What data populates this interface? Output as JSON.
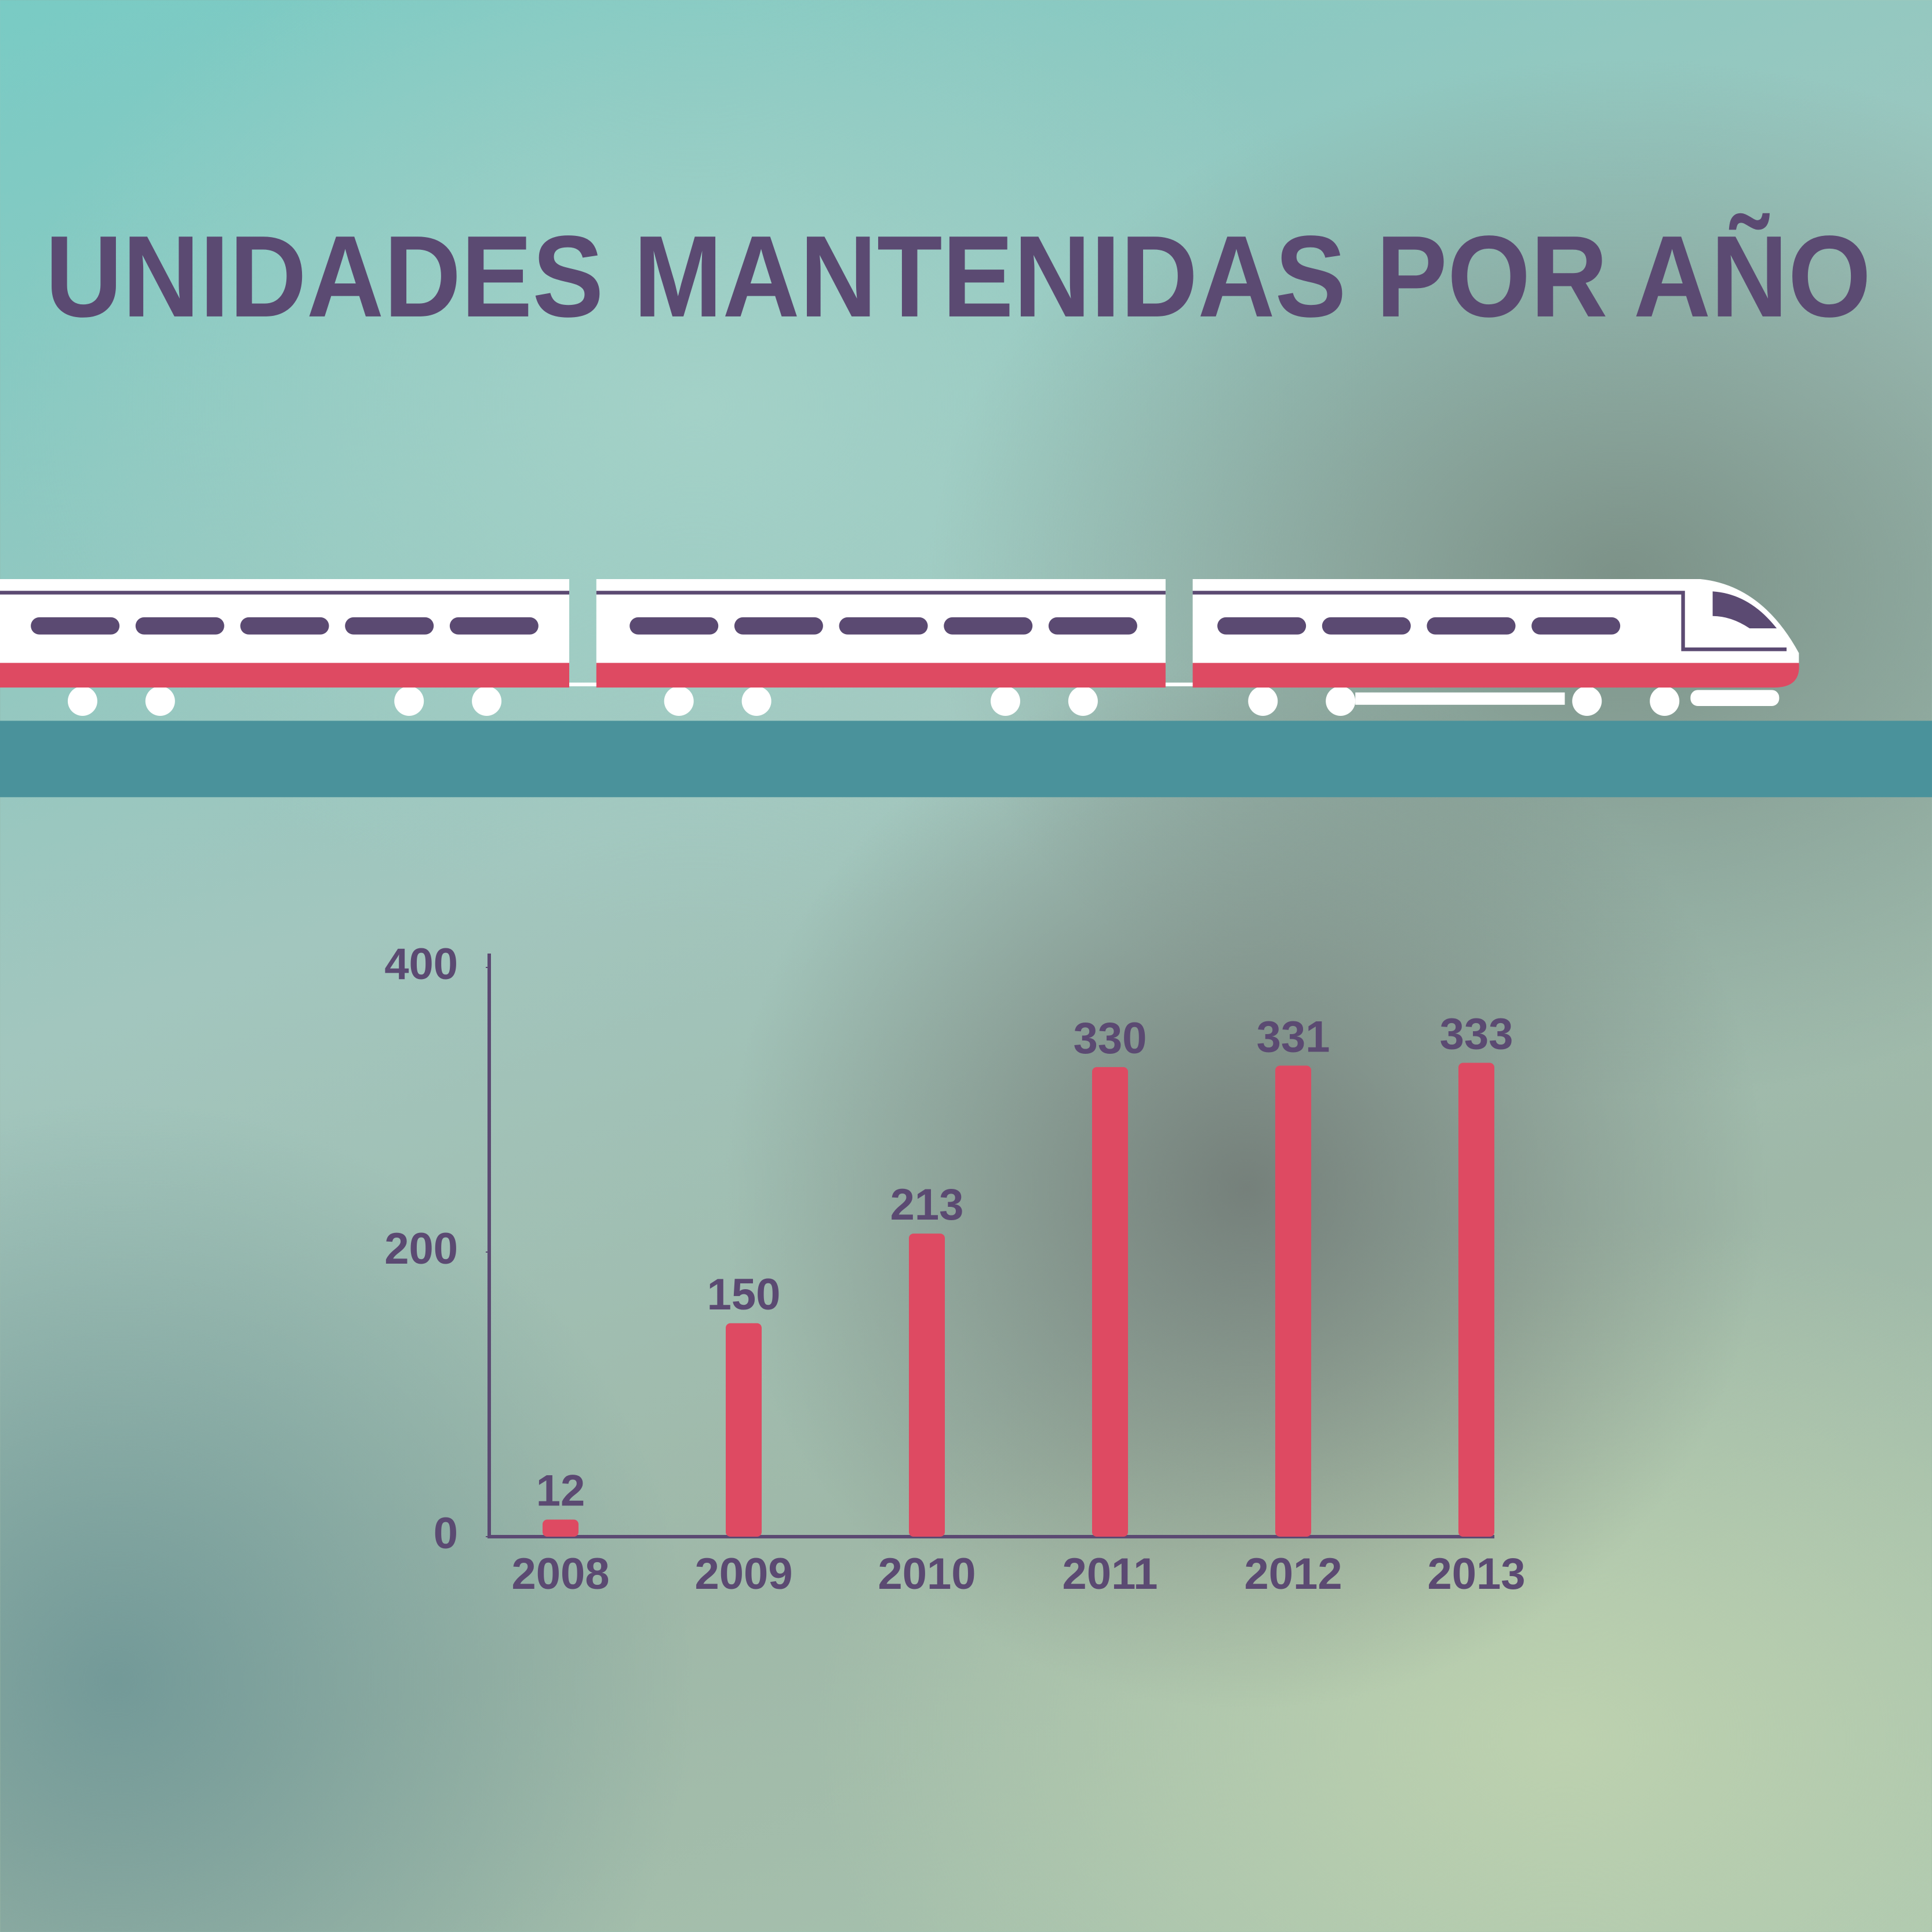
{
  "chart_data": {
    "type": "bar",
    "title": "UNIDADES MANTENIDAS POR AÑO",
    "categories": [
      "2008",
      "2009",
      "2010",
      "2011",
      "2012",
      "2013"
    ],
    "values": [
      12,
      150,
      213,
      330,
      331,
      333
    ],
    "color": "#de4a62",
    "ylim": [
      0,
      400
    ],
    "yticks": [
      0,
      200,
      400
    ]
  }
}
